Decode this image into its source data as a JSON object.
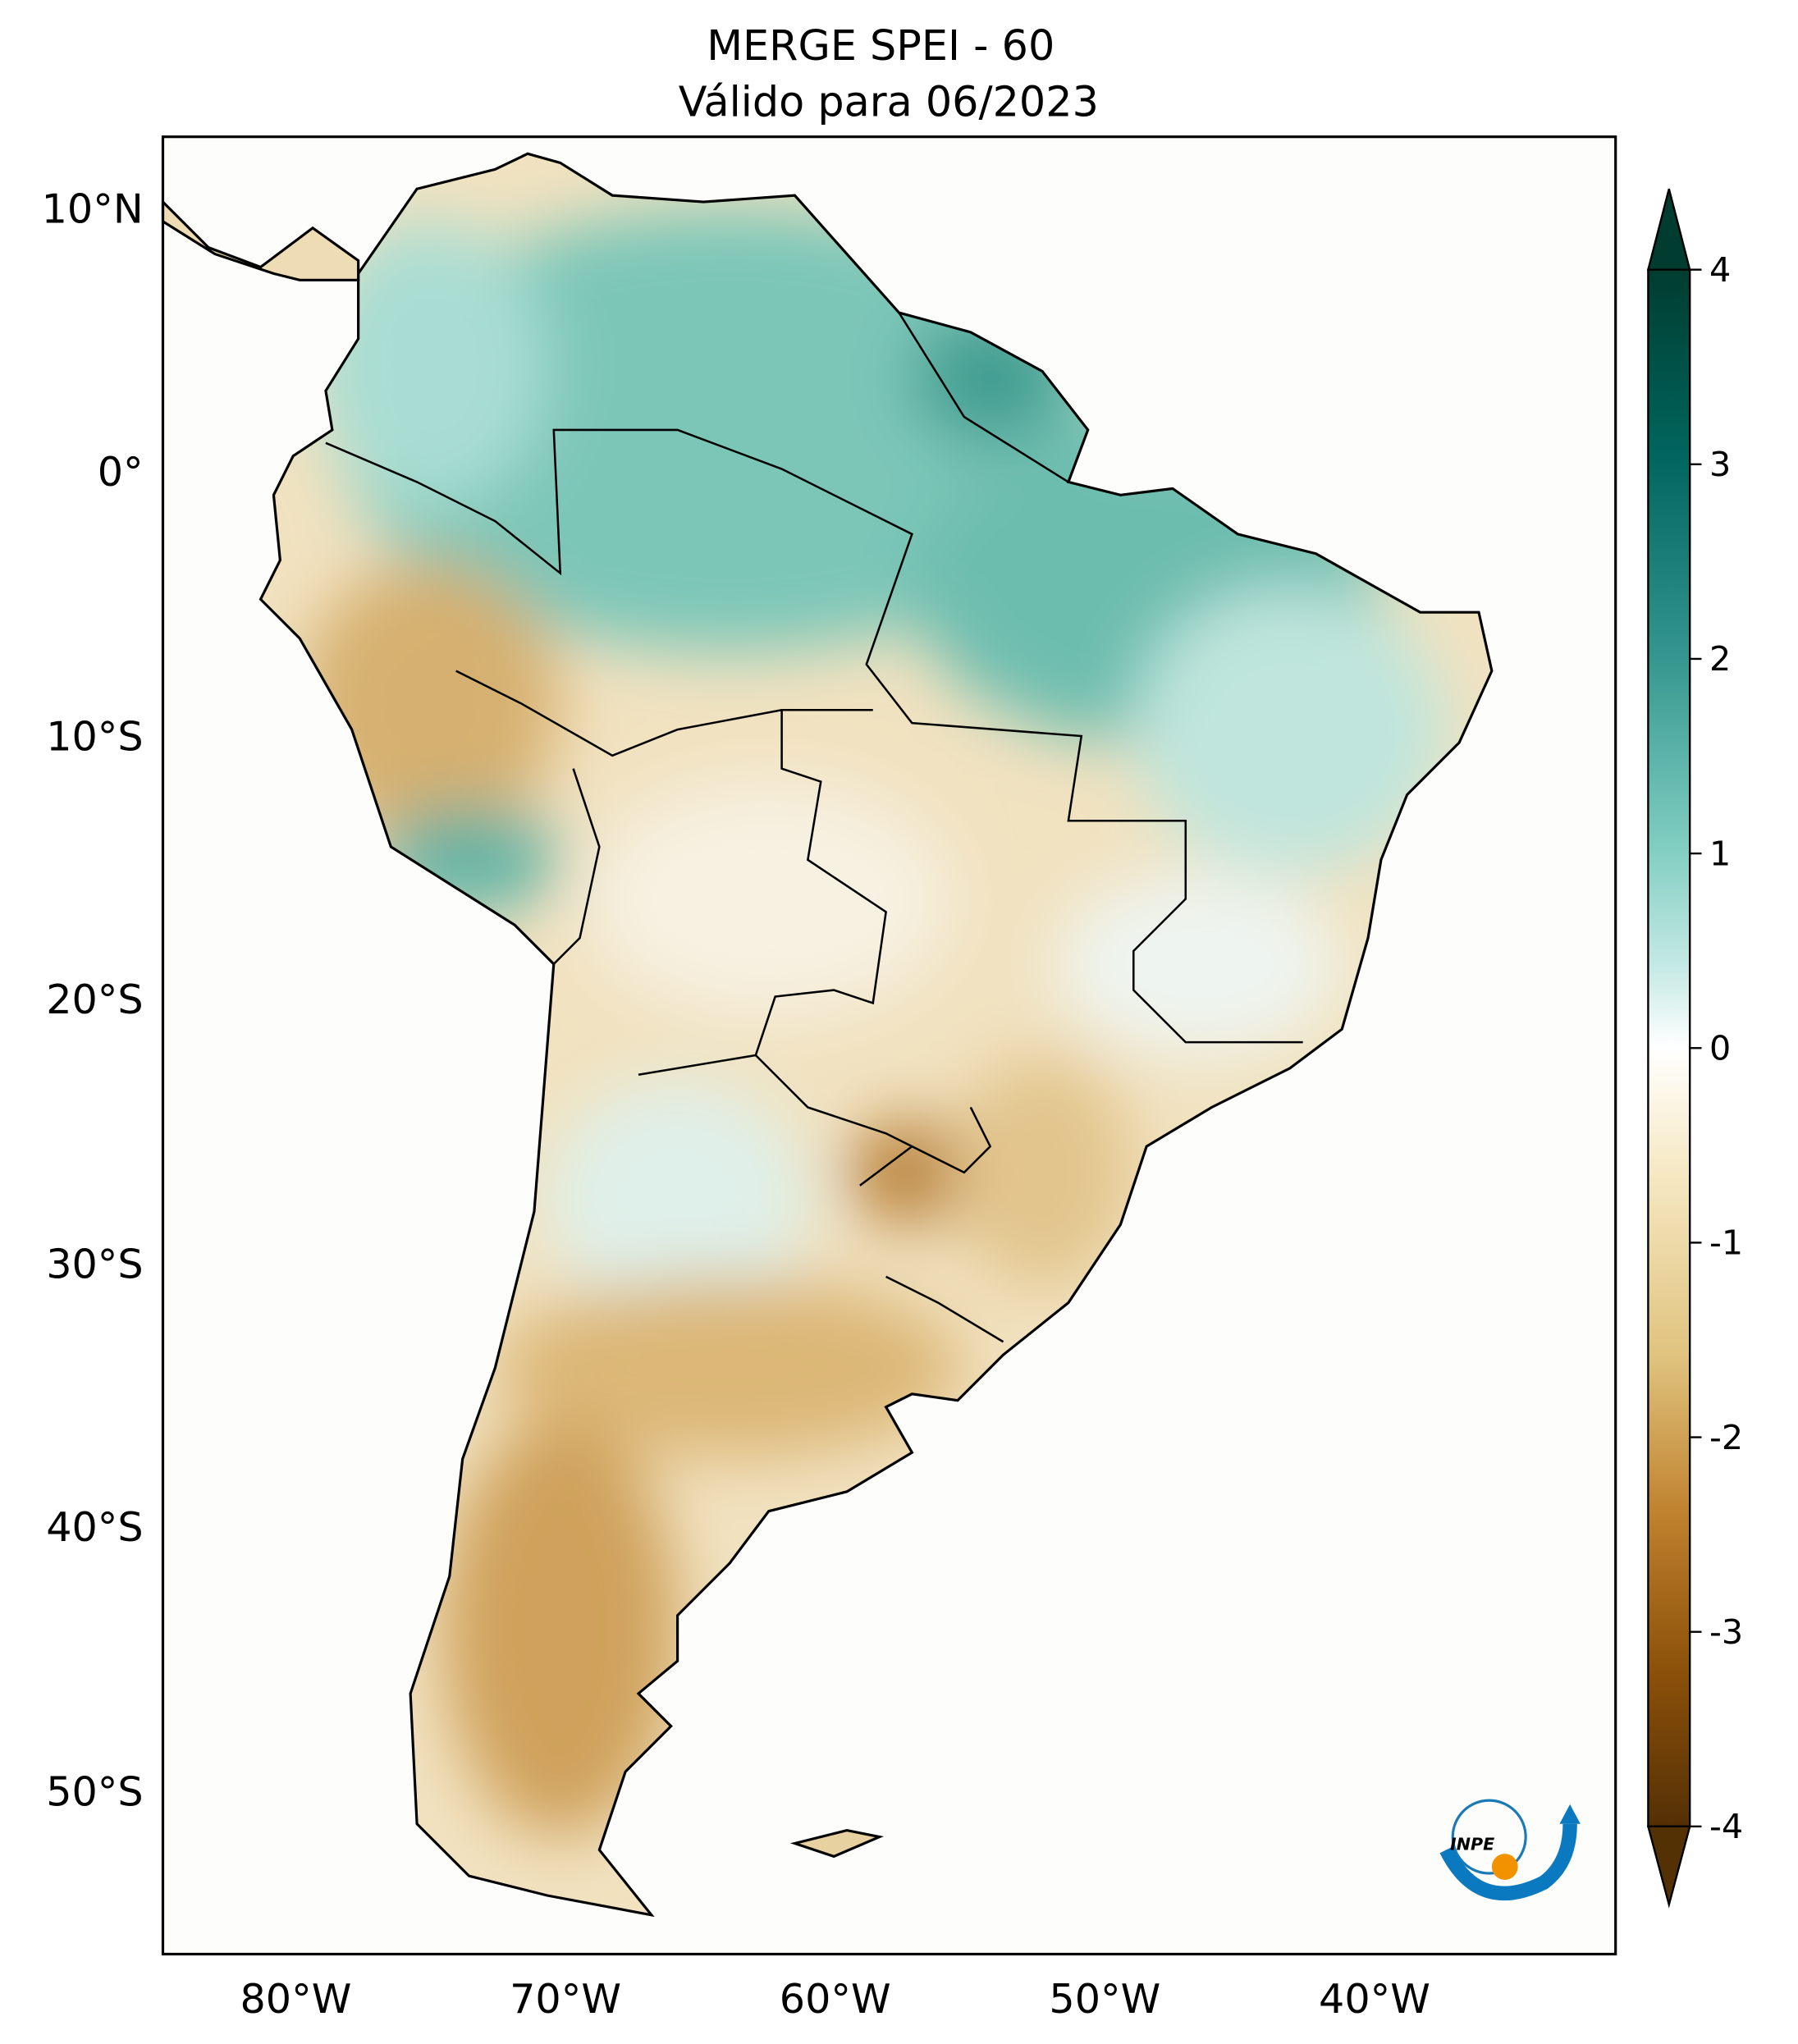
{
  "title": {
    "line1": "MERGE   SPEI - 60",
    "line2": "Válido para 06/2023"
  },
  "chart_data": {
    "type": "heatmap",
    "title": "MERGE   SPEI - 60",
    "subtitle": "Válido para 06/2023",
    "region": "South America",
    "xlim": [
      -85,
      -31
    ],
    "ylim": [
      -56,
      12.7
    ],
    "x_ticks": [
      -80,
      -70,
      -60,
      -50,
      -40
    ],
    "x_tick_labels": [
      "80°W",
      "70°W",
      "60°W",
      "50°W",
      "40°W"
    ],
    "y_ticks": [
      10,
      0,
      -10,
      -20,
      -30,
      -40,
      -50
    ],
    "y_tick_labels": [
      "10°N",
      "0°",
      "10°S",
      "20°S",
      "30°S",
      "40°S",
      "50°S"
    ],
    "colorbar": {
      "colormap": "BrBG",
      "vmin": -4,
      "vmax": 4,
      "extend": "both",
      "ticks": [
        4,
        3,
        2,
        1,
        0,
        -1,
        -2,
        -3,
        -4
      ],
      "tick_labels": [
        "4",
        "3",
        "2",
        "1",
        "0",
        "-1",
        "-2",
        "-3",
        "-4"
      ],
      "colors": {
        "low": "#543005",
        "mid_low": "#dfc27d",
        "zero": "#ffffff",
        "mid_high": "#80cdc1",
        "high": "#003c30"
      }
    },
    "patterns": [
      {
        "area": "Amazon / northern Brazil / Guianas",
        "tendency": "wet",
        "approx_spei": 1.5
      },
      {
        "area": "Peru / western Andes",
        "tendency": "dry",
        "approx_spei": -1.5
      },
      {
        "area": "Argentina / Chile / Patagonia",
        "tendency": "dry",
        "approx_spei": -2
      },
      {
        "area": "Southern Brazil / Uruguay",
        "tendency": "dry",
        "approx_spei": -1.5
      },
      {
        "area": "Southern Peru coast",
        "tendency": "wet",
        "approx_spei": 2
      }
    ]
  },
  "logo": {
    "text": "INPE"
  }
}
